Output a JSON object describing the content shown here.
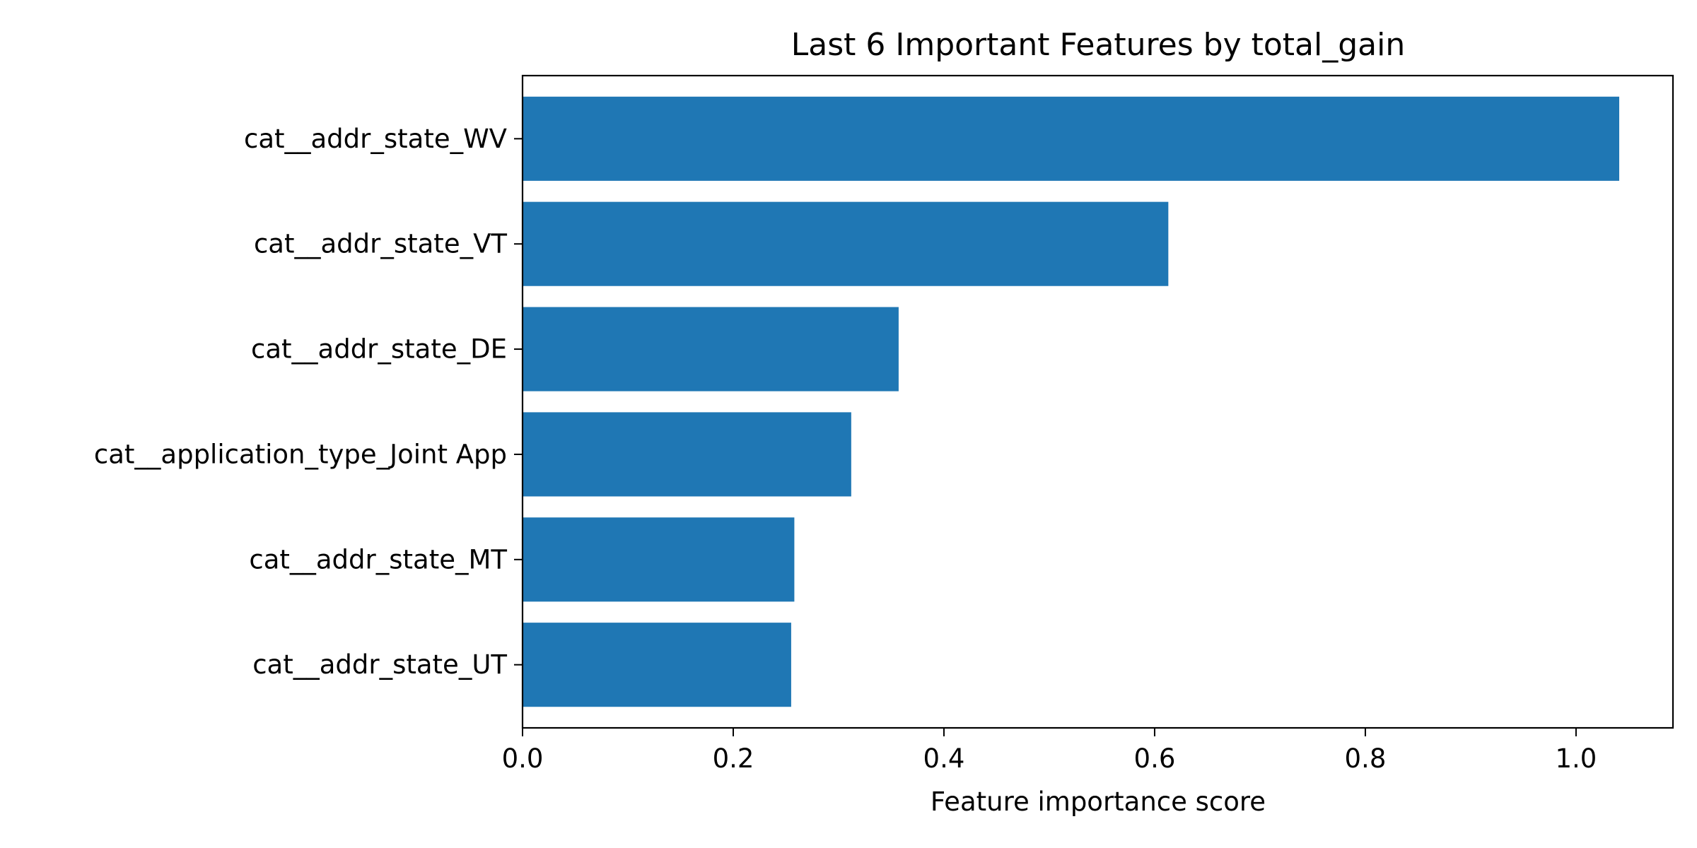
{
  "chart_data": {
    "type": "bar",
    "orientation": "horizontal",
    "title": "Last 6 Important Features by total_gain",
    "xlabel": "Feature importance score",
    "ylabel": "",
    "categories": [
      "cat__addr_state_WV",
      "cat__addr_state_VT",
      "cat__addr_state_DE",
      "cat__application_type_Joint App",
      "cat__addr_state_MT",
      "cat__addr_state_UT"
    ],
    "values": [
      1.041,
      0.613,
      0.357,
      0.312,
      0.258,
      0.255
    ],
    "xlim": [
      0.0,
      1.092
    ],
    "xticks": [
      0.0,
      0.2,
      0.4,
      0.6,
      0.8,
      1.0
    ],
    "xtick_labels": [
      "0.0",
      "0.2",
      "0.4",
      "0.6",
      "0.8",
      "1.0"
    ],
    "bar_color": "#1f77b4",
    "grid": false,
    "legend": "none"
  }
}
